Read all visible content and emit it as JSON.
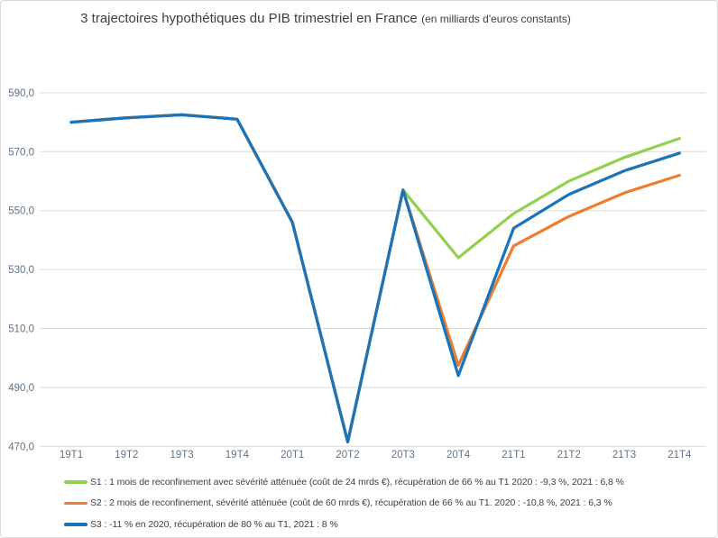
{
  "title_main": "3 trajectoires hypothétiques du PIB trimestriel en France",
  "title_sub": "(en milliards d'euros constants)",
  "colors": {
    "grid": "#D9D9D9",
    "axis_text": "#5F7386",
    "legend_text": "#404040",
    "title_text": "#3F3F3F",
    "border": "#D9D9D9",
    "s1_green": "#92D050",
    "s2_orange": "#ED7D31",
    "s3_blue": "#1B73B9"
  },
  "chart_data": {
    "type": "line",
    "title": "3 trajectoires hypothétiques du PIB trimestriel en France (en milliards d'euros constants)",
    "xlabel": "",
    "ylabel": "",
    "ylim": [
      470,
      590
    ],
    "grid": "horizontal",
    "legend_position": "bottom-left",
    "categories": [
      "19T1",
      "19T2",
      "19T3",
      "19T4",
      "20T1",
      "20T2",
      "20T3",
      "20T4",
      "21T1",
      "21T2",
      "21T3",
      "21T4"
    ],
    "y_ticks": [
      {
        "value": 590,
        "label": "590,0"
      },
      {
        "value": 570,
        "label": "570,0"
      },
      {
        "value": 550,
        "label": "550,0"
      },
      {
        "value": 530,
        "label": "530,0"
      },
      {
        "value": 510,
        "label": "510,0"
      },
      {
        "value": 490,
        "label": "490,0"
      },
      {
        "value": 470,
        "label": "470,0"
      }
    ],
    "series": [
      {
        "name": "S1",
        "color": "#92D050",
        "legend": "S1 : 1 mois de reconfinement avec sévérité atténuée (coût de 24 mrds €), récupération de 66 % au T1 2020 : -9,3 %, 2021 : 6,8 %",
        "values": [
          580,
          581.5,
          582.5,
          581,
          546,
          471.5,
          557,
          534,
          549,
          560,
          568,
          574.5
        ]
      },
      {
        "name": "S2",
        "color": "#ED7D31",
        "legend": "S2 : 2 mois de reconfinement, sévérité atténuée (coût de 60 mrds €), récupération de 66 % au T1. 2020 : -10,8 %, 2021 : 6,3 %",
        "values": [
          580,
          581.5,
          582.5,
          581,
          546,
          471.5,
          557,
          497.5,
          538,
          548,
          556,
          562
        ]
      },
      {
        "name": "S3",
        "color": "#1B73B9",
        "legend": "S3 : -11 % en 2020, récupération de 80 % au T1, 2021 : 8 %",
        "values": [
          580,
          581.5,
          582.5,
          581,
          546,
          471.5,
          557,
          494,
          544,
          555.5,
          563.5,
          569.5
        ]
      }
    ]
  }
}
